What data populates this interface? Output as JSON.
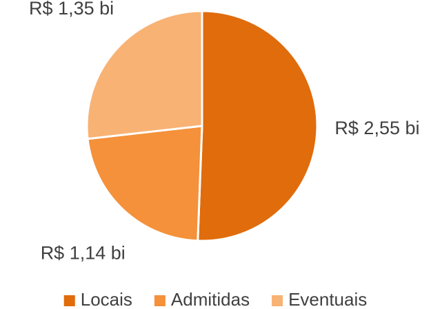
{
  "chart_data": {
    "type": "pie",
    "categories": [
      "Locais",
      "Admitidas",
      "Eventuais"
    ],
    "values": [
      2.55,
      1.14,
      1.35
    ],
    "value_labels": [
      "R$ 2,55 bi",
      "R$ 1,14 bi",
      "R$ 1,35 bi"
    ],
    "colors": [
      "#e06c0c",
      "#f4913a",
      "#f8b274"
    ],
    "legend": "bottom"
  }
}
